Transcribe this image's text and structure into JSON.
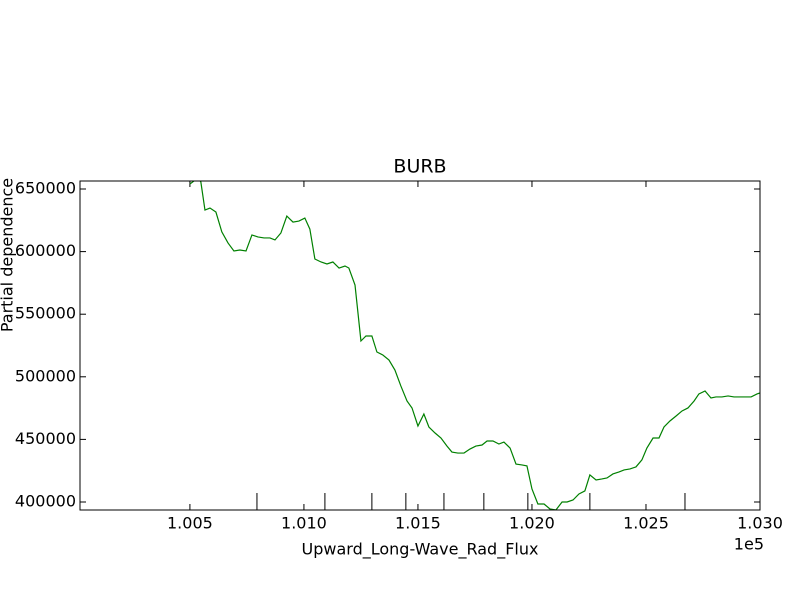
{
  "chart_data": {
    "type": "line",
    "title": "BURB",
    "xlabel": "Upward_Long-Wave_Rad_Flux",
    "ylabel": "Partial dependence",
    "x_offset_label": "1e5",
    "x": [
      100500,
      100518,
      100531,
      100548,
      100566,
      100588,
      100614,
      100640,
      100667,
      100693,
      100719,
      100746,
      100772,
      100798,
      100825,
      100851,
      100873,
      100899,
      100925,
      100952,
      100978,
      101004,
      101026,
      101048,
      101075,
      101101,
      101127,
      101154,
      101180,
      101197,
      101224,
      101250,
      101272,
      101298,
      101320,
      101346,
      101373,
      101399,
      101425,
      101452,
      101474,
      101500,
      101526,
      101548,
      101575,
      101601,
      101627,
      101649,
      101675,
      101702,
      101728,
      101754,
      101781,
      101803,
      101829,
      101855,
      101877,
      101904,
      101930,
      101956,
      101978,
      102000,
      102026,
      102053,
      102079,
      102105,
      102132,
      102154,
      102180,
      102206,
      102232,
      102254,
      102281,
      102307,
      102329,
      102355,
      102382,
      102404,
      102430,
      102456,
      102482,
      102504,
      102531,
      102557,
      102579,
      102605,
      102632,
      102658,
      102684,
      102711,
      102732,
      102759,
      102785,
      102807,
      102833,
      102860,
      102886,
      102908,
      102934,
      102961,
      102987,
      103000
    ],
    "series": [
      {
        "name": "BURB",
        "color": "#008000",
        "values": [
          654000,
          656400,
          660400,
          655600,
          633200,
          634800,
          631600,
          615700,
          606900,
          600500,
          601300,
          600500,
          613300,
          611700,
          610900,
          610900,
          609300,
          614900,
          628400,
          623600,
          624400,
          626800,
          618000,
          594100,
          591700,
          590100,
          591700,
          586900,
          588500,
          586900,
          573300,
          528600,
          532600,
          532600,
          519800,
          517400,
          513400,
          505400,
          492700,
          480700,
          475100,
          460700,
          470300,
          459900,
          455100,
          451100,
          444700,
          439900,
          439100,
          439100,
          442300,
          444700,
          445500,
          448700,
          448700,
          446300,
          447900,
          443100,
          430300,
          429600,
          428800,
          410400,
          398400,
          398400,
          394400,
          393600,
          400000,
          400000,
          401600,
          406400,
          408800,
          421600,
          417600,
          418400,
          419200,
          422400,
          424000,
          425600,
          426400,
          428000,
          433600,
          443100,
          451100,
          451100,
          459900,
          464700,
          468700,
          472700,
          475100,
          480700,
          486300,
          488700,
          483100,
          483900,
          483900,
          484700,
          483900,
          483900,
          483900,
          483900,
          486300,
          487100
        ]
      }
    ],
    "deciles": [
      100794,
      101092,
      101298,
      101447,
      101614,
      101789,
      101982,
      102254,
      102671
    ],
    "xlim": [
      100018,
      103000
    ],
    "xticks": [
      {
        "value": 100500,
        "label": "1.005"
      },
      {
        "value": 101000,
        "label": "1.010"
      },
      {
        "value": 101500,
        "label": "1.015"
      },
      {
        "value": 102000,
        "label": "1.020"
      },
      {
        "value": 102500,
        "label": "1.025"
      },
      {
        "value": 103000,
        "label": "1.030"
      }
    ],
    "ylim": [
      393600,
      656400
    ],
    "yticks": [
      400000,
      450000,
      500000,
      550000,
      600000,
      650000
    ]
  }
}
